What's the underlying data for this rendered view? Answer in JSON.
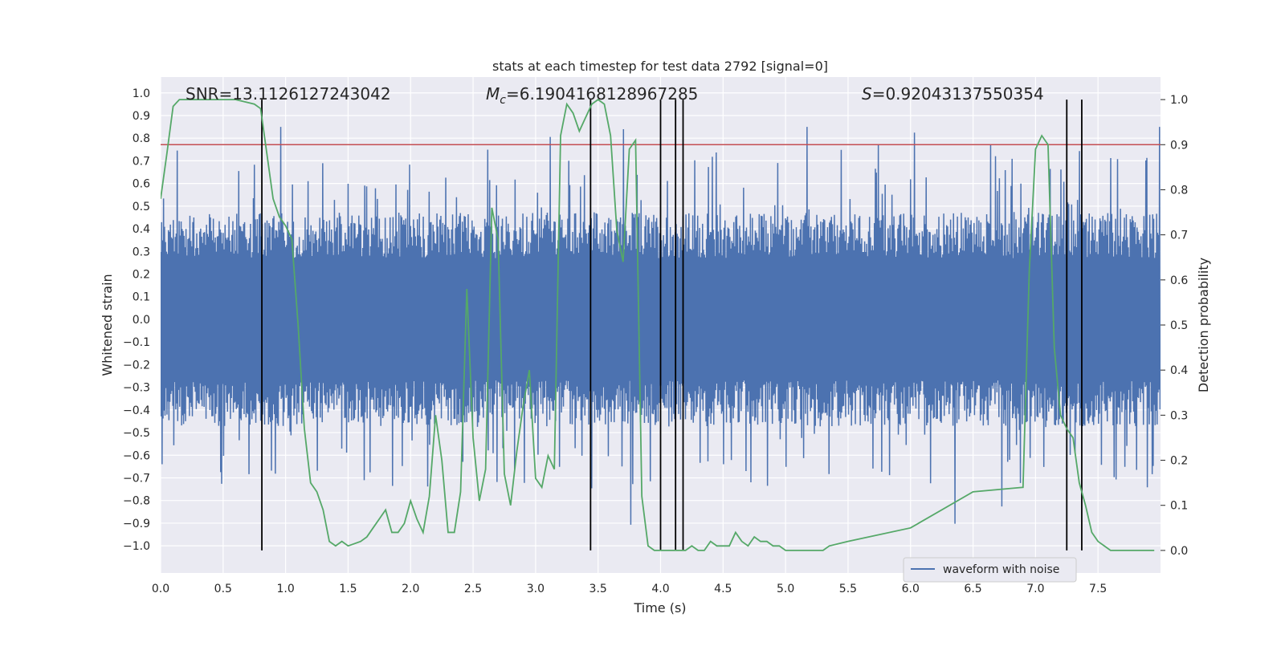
{
  "chart_data": {
    "type": "line",
    "title": "stats at each timestep for test data 2792 [signal=0]",
    "xlabel": "Time (s)",
    "ylabel": "Whitened strain",
    "y2label": "Detection probability",
    "xlim": [
      0.0,
      8.0
    ],
    "ylim": [
      -1.12,
      1.07
    ],
    "y2lim": [
      -0.05,
      1.05
    ],
    "xticks": [
      0.0,
      0.5,
      1.0,
      1.5,
      2.0,
      2.5,
      3.0,
      3.5,
      4.0,
      4.5,
      5.0,
      5.5,
      6.0,
      6.5,
      7.0,
      7.5
    ],
    "xtick_labels": [
      "0.0",
      "0.5",
      "1.0",
      "1.5",
      "2.0",
      "2.5",
      "3.0",
      "3.5",
      "4.0",
      "4.5",
      "5.0",
      "5.5",
      "6.0",
      "6.5",
      "7.0",
      "7.5"
    ],
    "yticks": [
      1.0,
      0.9,
      0.8,
      0.7,
      0.6,
      0.5,
      0.4,
      0.3,
      0.2,
      0.1,
      0.0,
      -0.1,
      -0.2,
      -0.3,
      -0.4,
      -0.5,
      -0.6,
      -0.7,
      -0.8,
      -0.9,
      -1.0
    ],
    "ytick_labels": [
      "1.0",
      "0.9",
      "0.8",
      "0.7",
      "0.6",
      "0.5",
      "0.4",
      "0.3",
      "0.2",
      "0.1",
      "0.0",
      "−0.1",
      "−0.2",
      "−0.3",
      "−0.4",
      "−0.5",
      "−0.6",
      "−0.7",
      "−0.8",
      "−0.9",
      "−1.0"
    ],
    "y2ticks": [
      1.0,
      0.9,
      0.8,
      0.7,
      0.6,
      0.5,
      0.4,
      0.3,
      0.2,
      0.1,
      0.0
    ],
    "y2tick_labels": [
      "1.0",
      "0.9",
      "0.8",
      "0.7",
      "0.6",
      "0.5",
      "0.4",
      "0.3",
      "0.2",
      "0.1",
      "0.0"
    ],
    "annotations": {
      "snr": "SNR=13.1126127243042",
      "mc_symbol": "M",
      "mc_subscript": "c",
      "mc_value": "=6.190416812896728​5",
      "s_symbol": "S",
      "s_value": "=0.92043137550354"
    },
    "legend": {
      "position": "lower-right",
      "entries": [
        {
          "label": "waveform with noise",
          "color": "#4c72b0"
        }
      ]
    },
    "threshold": {
      "y2": 0.9,
      "color": "#c44e52"
    },
    "vertical_lines": {
      "x": [
        0.81,
        3.44,
        4.0,
        4.12,
        4.18,
        7.25,
        7.37
      ],
      "color": "#000000"
    },
    "waveform": {
      "name": "waveform with noise",
      "color": "#4c72b0",
      "core_amplitude": 0.45,
      "peak_max": 0.85,
      "trough_min": -0.96,
      "sample_count": 2048
    },
    "probability": {
      "name": "detection probability",
      "color": "#55a868",
      "x": [
        0.0,
        0.05,
        0.1,
        0.15,
        0.6,
        0.75,
        0.8,
        0.85,
        0.9,
        0.95,
        1.0,
        1.05,
        1.1,
        1.15,
        1.2,
        1.25,
        1.3,
        1.35,
        1.4,
        1.45,
        1.5,
        1.6,
        1.65,
        1.7,
        1.75,
        1.8,
        1.85,
        1.9,
        1.95,
        2.0,
        2.05,
        2.1,
        2.15,
        2.2,
        2.25,
        2.3,
        2.35,
        2.4,
        2.45,
        2.5,
        2.55,
        2.6,
        2.65,
        2.7,
        2.75,
        2.8,
        2.85,
        2.9,
        2.95,
        3.0,
        3.05,
        3.1,
        3.15,
        3.2,
        3.25,
        3.3,
        3.35,
        3.4,
        3.45,
        3.5,
        3.55,
        3.6,
        3.65,
        3.7,
        3.75,
        3.8,
        3.85,
        3.9,
        3.95,
        4.0,
        4.05,
        4.1,
        4.15,
        4.2,
        4.25,
        4.3,
        4.35,
        4.4,
        4.45,
        4.5,
        4.55,
        4.6,
        4.65,
        4.7,
        4.75,
        4.8,
        4.85,
        4.9,
        4.95,
        5.0,
        5.05,
        5.1,
        5.15,
        5.2,
        5.25,
        5.3,
        5.35,
        5.5,
        6.0,
        6.5,
        6.9,
        6.95,
        7.0,
        7.05,
        7.1,
        7.15,
        7.2,
        7.25,
        7.3,
        7.35,
        7.4,
        7.45,
        7.5,
        7.55,
        7.6,
        7.65,
        7.7,
        7.75,
        7.8,
        7.9,
        7.95
      ],
      "y": [
        0.78,
        0.88,
        0.985,
        1.0,
        1.0,
        0.99,
        0.98,
        0.88,
        0.78,
        0.74,
        0.72,
        0.69,
        0.5,
        0.27,
        0.15,
        0.13,
        0.09,
        0.02,
        0.01,
        0.02,
        0.01,
        0.02,
        0.03,
        0.05,
        0.07,
        0.09,
        0.04,
        0.04,
        0.06,
        0.11,
        0.07,
        0.04,
        0.12,
        0.3,
        0.2,
        0.04,
        0.04,
        0.13,
        0.58,
        0.25,
        0.11,
        0.18,
        0.76,
        0.69,
        0.17,
        0.1,
        0.22,
        0.32,
        0.4,
        0.16,
        0.14,
        0.21,
        0.18,
        0.92,
        0.99,
        0.97,
        0.93,
        0.96,
        0.99,
        1.0,
        0.99,
        0.92,
        0.71,
        0.64,
        0.89,
        0.91,
        0.12,
        0.01,
        0.0,
        0.0,
        0.0,
        0.0,
        0.0,
        0.0,
        0.01,
        0.0,
        0.0,
        0.02,
        0.01,
        0.01,
        0.01,
        0.04,
        0.02,
        0.01,
        0.03,
        0.02,
        0.02,
        0.01,
        0.01,
        0.0,
        0.0,
        0.0,
        0.0,
        0.0,
        0.0,
        0.0,
        0.01,
        0.02,
        0.05,
        0.13,
        0.14,
        0.62,
        0.89,
        0.92,
        0.9,
        0.45,
        0.3,
        0.27,
        0.25,
        0.15,
        0.1,
        0.04,
        0.02,
        0.01,
        0.0,
        0.0,
        0.0,
        0.0,
        0.0,
        0.0,
        0.0
      ]
    }
  }
}
